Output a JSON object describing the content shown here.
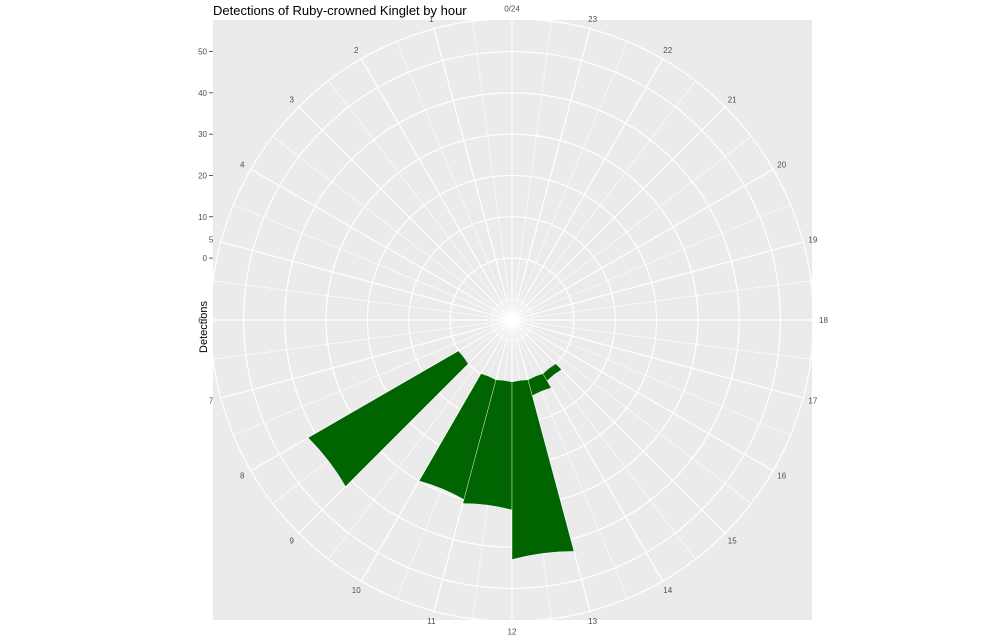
{
  "chart_data": {
    "type": "bar",
    "coord": "polar",
    "title": "Detections of Ruby-crowned Kinglet by hour",
    "ylabel": "Detections",
    "xlabel": "",
    "categories": [
      "0/24",
      "1",
      "2",
      "3",
      "4",
      "5",
      "6",
      "7",
      "8",
      "9",
      "10",
      "11",
      "12",
      "13",
      "14",
      "15",
      "16",
      "17",
      "18",
      "19",
      "20",
      "21",
      "22",
      "23"
    ],
    "values": [
      0,
      0,
      0,
      0,
      0,
      0,
      0,
      0,
      42,
      0,
      30,
      31,
      43,
      4,
      2,
      0,
      0,
      0,
      0,
      0,
      0,
      0,
      0,
      0
    ],
    "yticks": [
      "0",
      "10",
      "20",
      "30",
      "40",
      "50"
    ],
    "ylim": [
      -15,
      50
    ],
    "bar_color": "#006400",
    "panel_color": "#EBEBEB",
    "grid": true,
    "legend": "none"
  }
}
